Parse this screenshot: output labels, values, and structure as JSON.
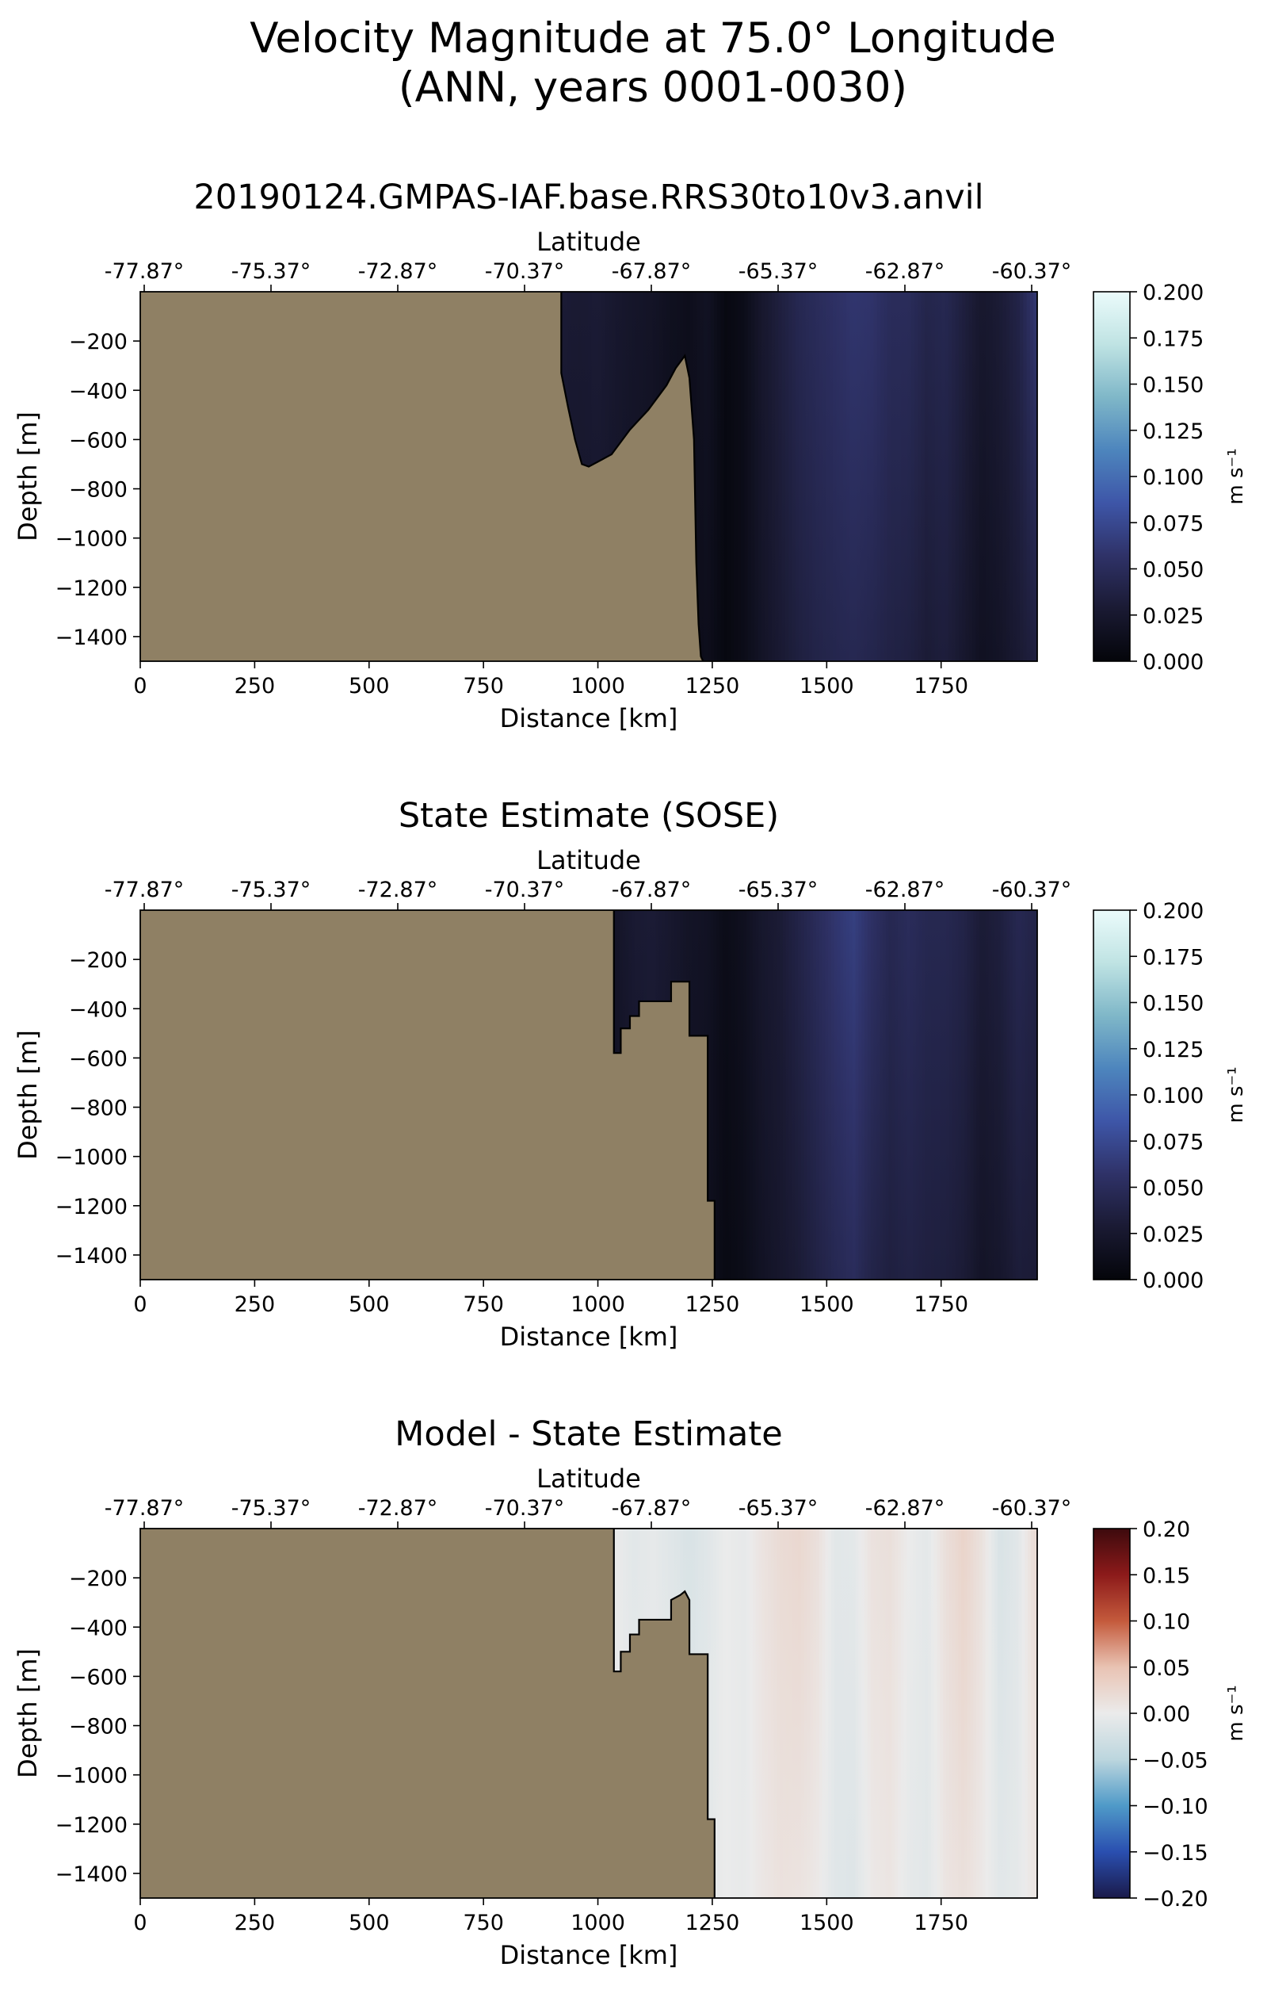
{
  "figure": {
    "title_line1": "Velocity Magnitude at 75.0° Longitude",
    "title_line2": "(ANN, years 0001-0030)"
  },
  "colors": {
    "land": "#8f8064",
    "amp_colormap": [
      "#04050a",
      "#1a1a33",
      "#2f3268",
      "#3e56a8",
      "#4d85bd",
      "#7fb7c8",
      "#bfe3e3",
      "#ebfbfb"
    ],
    "diff_colormap": [
      "#1a1a4a",
      "#2a4fb0",
      "#4f9ac8",
      "#bcd6de",
      "#ebebeb",
      "#e9c3b3",
      "#c45a3c",
      "#8c1a1a",
      "#3d0a0d"
    ]
  },
  "chart_data": [
    {
      "type": "heatmap",
      "title": "20190124.GMPAS-IAF.base.RRS30to10v3.anvil",
      "xlabel": "Distance [km]",
      "ylabel": "Depth [m]",
      "top_xlabel": "Latitude",
      "xlim": [
        0,
        1960
      ],
      "ylim": [
        -1500,
        0
      ],
      "xticks": [
        0,
        250,
        500,
        750,
        1000,
        1250,
        1500,
        1750
      ],
      "xtick_labels": [
        "0",
        "250",
        "500",
        "750",
        "1000",
        "1250",
        "1500",
        "1750"
      ],
      "yticks": [
        -200,
        -400,
        -600,
        -800,
        -1000,
        -1200,
        -1400
      ],
      "ytick_labels": [
        "−200",
        "−400",
        "−600",
        "−800",
        "−1000",
        "−1200",
        "−1400"
      ],
      "top_xtick_labels": [
        "-77.87°",
        "-75.37°",
        "-72.87°",
        "-70.37°",
        "-67.87°",
        "-65.37°",
        "-62.87°",
        "-60.37°"
      ],
      "colorbar": {
        "label": "m s⁻¹",
        "range": [
          0,
          0.2
        ],
        "ticks": [
          0.2,
          0.175,
          0.15,
          0.125,
          0.1,
          0.075,
          0.05,
          0.025,
          0.0
        ],
        "tick_labels": [
          "0.200",
          "0.175",
          "0.150",
          "0.125",
          "0.100",
          "0.075",
          "0.050",
          "0.025",
          "0.000"
        ],
        "colormap": "amp"
      },
      "bathymetry": {
        "distance": [
          920,
          920,
          935,
          950,
          965,
          980,
          1000,
          1030,
          1050,
          1070,
          1090,
          1110,
          1130,
          1150,
          1170,
          1190,
          1200,
          1210,
          1215,
          1220,
          1225,
          1230
        ],
        "depth": [
          0,
          -330,
          -470,
          -600,
          -700,
          -710,
          -690,
          -660,
          -610,
          -560,
          -520,
          -480,
          -430,
          -380,
          -310,
          -260,
          -350,
          -600,
          -1100,
          -1350,
          -1480,
          -1500
        ]
      },
      "field_profile": {
        "distance": [
          920,
          960,
          1000,
          1040,
          1080,
          1120,
          1160,
          1200,
          1240,
          1280,
          1320,
          1360,
          1400,
          1440,
          1480,
          1520,
          1560,
          1600,
          1640,
          1680,
          1720,
          1760,
          1800,
          1840,
          1880,
          1920,
          1955
        ],
        "surface": [
          0.03,
          0.028,
          0.03,
          0.025,
          0.022,
          0.02,
          0.015,
          0.012,
          0.018,
          0.005,
          0.01,
          0.025,
          0.035,
          0.045,
          0.05,
          0.055,
          0.06,
          0.058,
          0.05,
          0.05,
          0.042,
          0.045,
          0.035,
          0.025,
          0.03,
          0.04,
          0.06
        ],
        "deep": [
          0.02,
          0.02,
          0.022,
          0.02,
          0.018,
          0.015,
          0.01,
          0.01,
          0.012,
          0.004,
          0.01,
          0.02,
          0.028,
          0.035,
          0.04,
          0.043,
          0.045,
          0.042,
          0.038,
          0.036,
          0.03,
          0.033,
          0.025,
          0.016,
          0.02,
          0.028,
          0.035
        ]
      }
    },
    {
      "type": "heatmap",
      "title": "State Estimate (SOSE)",
      "xlabel": "Distance [km]",
      "ylabel": "Depth [m]",
      "top_xlabel": "Latitude",
      "xlim": [
        0,
        1960
      ],
      "ylim": [
        -1500,
        0
      ],
      "xticks": [
        0,
        250,
        500,
        750,
        1000,
        1250,
        1500,
        1750
      ],
      "xtick_labels": [
        "0",
        "250",
        "500",
        "750",
        "1000",
        "1250",
        "1500",
        "1750"
      ],
      "yticks": [
        -200,
        -400,
        -600,
        -800,
        -1000,
        -1200,
        -1400
      ],
      "ytick_labels": [
        "−200",
        "−400",
        "−600",
        "−800",
        "−1000",
        "−1200",
        "−1400"
      ],
      "top_xtick_labels": [
        "-77.87°",
        "-75.37°",
        "-72.87°",
        "-70.37°",
        "-67.87°",
        "-65.37°",
        "-62.87°",
        "-60.37°"
      ],
      "colorbar": {
        "label": "m s⁻¹",
        "range": [
          0,
          0.2
        ],
        "ticks": [
          0.2,
          0.175,
          0.15,
          0.125,
          0.1,
          0.075,
          0.05,
          0.025,
          0.0
        ],
        "tick_labels": [
          "0.200",
          "0.175",
          "0.150",
          "0.125",
          "0.100",
          "0.075",
          "0.050",
          "0.025",
          "0.000"
        ],
        "colormap": "amp"
      },
      "bathymetry": {
        "distance": [
          1035,
          1035,
          1050,
          1050,
          1070,
          1070,
          1090,
          1090,
          1110,
          1110,
          1160,
          1160,
          1200,
          1200,
          1240,
          1240,
          1255,
          1255
        ],
        "depth": [
          0,
          -580,
          -580,
          -480,
          -480,
          -430,
          -430,
          -370,
          -370,
          -370,
          -370,
          -290,
          -290,
          -510,
          -510,
          -1180,
          -1180,
          -1500
        ]
      },
      "field_profile": {
        "distance": [
          1035,
          1080,
          1120,
          1160,
          1200,
          1240,
          1280,
          1320,
          1360,
          1400,
          1440,
          1480,
          1520,
          1560,
          1600,
          1640,
          1680,
          1720,
          1760,
          1800,
          1840,
          1880,
          1920,
          1955
        ],
        "surface": [
          0.02,
          0.028,
          0.03,
          0.025,
          0.02,
          0.018,
          0.01,
          0.015,
          0.025,
          0.03,
          0.04,
          0.05,
          0.06,
          0.068,
          0.055,
          0.045,
          0.05,
          0.045,
          0.045,
          0.04,
          0.03,
          0.035,
          0.045,
          0.04
        ],
        "deep": [
          0.015,
          0.02,
          0.022,
          0.02,
          0.016,
          0.014,
          0.006,
          0.01,
          0.018,
          0.024,
          0.03,
          0.038,
          0.045,
          0.05,
          0.04,
          0.035,
          0.038,
          0.035,
          0.034,
          0.03,
          0.02,
          0.024,
          0.032,
          0.03
        ]
      }
    },
    {
      "type": "heatmap",
      "title": "Model - State Estimate",
      "xlabel": "Distance [km]",
      "ylabel": "Depth [m]",
      "top_xlabel": "Latitude",
      "xlim": [
        0,
        1960
      ],
      "ylim": [
        -1500,
        0
      ],
      "xticks": [
        0,
        250,
        500,
        750,
        1000,
        1250,
        1500,
        1750
      ],
      "xtick_labels": [
        "0",
        "250",
        "500",
        "750",
        "1000",
        "1250",
        "1500",
        "1750"
      ],
      "yticks": [
        -200,
        -400,
        -600,
        -800,
        -1000,
        -1200,
        -1400
      ],
      "ytick_labels": [
        "−200",
        "−400",
        "−600",
        "−800",
        "−1000",
        "−1200",
        "−1400"
      ],
      "top_xtick_labels": [
        "-77.87°",
        "-75.37°",
        "-72.87°",
        "-70.37°",
        "-67.87°",
        "-65.37°",
        "-62.87°",
        "-60.37°"
      ],
      "colorbar": {
        "label": "m s⁻¹",
        "range": [
          -0.2,
          0.2
        ],
        "ticks": [
          0.2,
          0.15,
          0.1,
          0.05,
          0.0,
          -0.05,
          -0.1,
          -0.15,
          -0.2
        ],
        "tick_labels": [
          "0.20",
          "0.15",
          "0.10",
          "0.05",
          "0.00",
          "−0.05",
          "−0.10",
          "−0.15",
          "−0.20"
        ],
        "colormap": "diff"
      },
      "bathymetry": {
        "distance": [
          1035,
          1035,
          1050,
          1050,
          1070,
          1070,
          1090,
          1090,
          1110,
          1110,
          1160,
          1160,
          1180,
          1190,
          1200,
          1200,
          1240,
          1240,
          1255,
          1255
        ],
        "depth": [
          0,
          -580,
          -580,
          -500,
          -500,
          -430,
          -430,
          -370,
          -370,
          -370,
          -370,
          -290,
          -270,
          -255,
          -290,
          -510,
          -510,
          -1180,
          -1180,
          -1500
        ]
      },
      "field_profile": {
        "distance": [
          1035,
          1080,
          1120,
          1160,
          1200,
          1240,
          1280,
          1320,
          1360,
          1400,
          1440,
          1480,
          1520,
          1560,
          1600,
          1640,
          1680,
          1720,
          1760,
          1800,
          1840,
          1880,
          1920,
          1955
        ],
        "surface": [
          0.0,
          -0.01,
          -0.005,
          -0.012,
          -0.02,
          -0.012,
          0.0,
          -0.005,
          0.01,
          0.02,
          0.025,
          0.015,
          -0.01,
          -0.008,
          0.012,
          0.015,
          0.0,
          -0.008,
          0.015,
          0.03,
          0.012,
          -0.02,
          -0.01,
          0.02
        ],
        "deep": [
          0.0,
          -0.006,
          -0.003,
          -0.006,
          -0.01,
          -0.008,
          0.0,
          -0.004,
          0.006,
          0.012,
          0.01,
          0.004,
          -0.012,
          -0.014,
          0.004,
          0.008,
          -0.006,
          -0.01,
          0.008,
          0.014,
          0.004,
          -0.01,
          -0.006,
          0.008
        ]
      }
    }
  ]
}
